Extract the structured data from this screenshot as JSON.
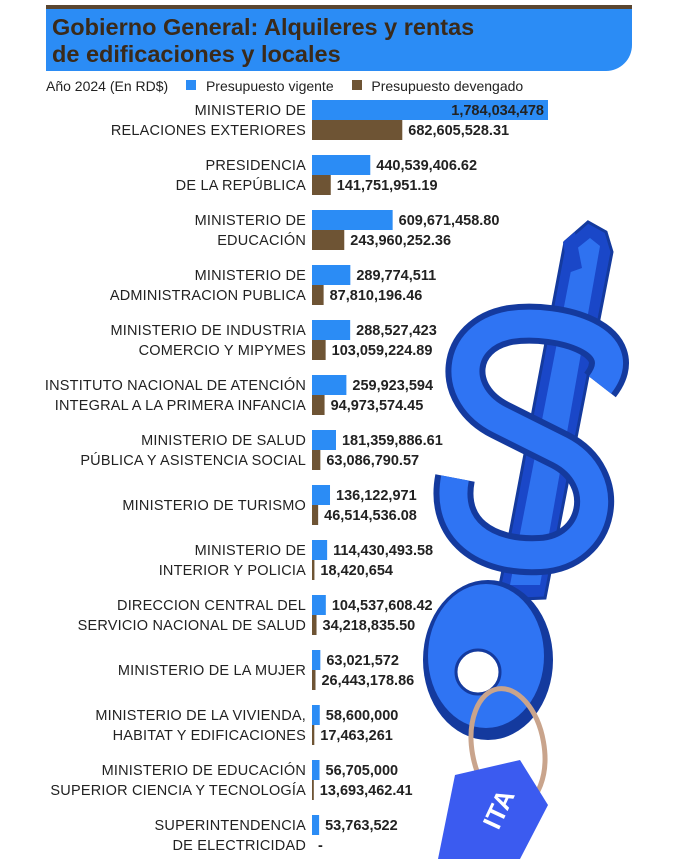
{
  "header": {
    "title_line1": "Gobierno General: Alquileres y rentas",
    "title_line2": "de edificaciones y locales"
  },
  "subtitle": "Año 2024 (En RD$)",
  "colors": {
    "vigente": "#2b8cf5",
    "devengado": "#6e5434",
    "header_bg": "#2b8cf5",
    "key": "#1f5fe0",
    "tag": "#3b5bf0"
  },
  "decoration": {
    "icon": "key-dollar-icon",
    "tag_text": "ITA"
  },
  "chart_data": {
    "type": "bar",
    "orientation": "horizontal",
    "grid": false,
    "legend_position": "top",
    "categories": [
      [
        "MINISTERIO DE",
        "RELACIONES EXTERIORES"
      ],
      [
        "PRESIDENCIA",
        "DE LA REPÚBLICA"
      ],
      [
        "MINISTERIO DE",
        "EDUCACIÓN"
      ],
      [
        "MINISTERIO DE",
        "ADMINISTRACION PUBLICA"
      ],
      [
        "MINISTERIO DE INDUSTRIA",
        "COMERCIO Y MIPYMES"
      ],
      [
        "INSTITUTO NACIONAL DE ATENCIÓN",
        "INTEGRAL A LA PRIMERA INFANCIA"
      ],
      [
        "MINISTERIO DE SALUD",
        "PÚBLICA Y ASISTENCIA SOCIAL"
      ],
      [
        "MINISTERIO DE TURISMO"
      ],
      [
        "MINISTERIO DE",
        "INTERIOR Y POLICIA"
      ],
      [
        "DIRECCION CENTRAL DEL",
        "SERVICIO NACIONAL DE SALUD"
      ],
      [
        "MINISTERIO DE LA MUJER"
      ],
      [
        "MINISTERIO DE LA VIVIENDA,",
        "HABITAT Y EDIFICACIONES"
      ],
      [
        "MINISTERIO DE EDUCACIÓN",
        "SUPERIOR CIENCIA Y TECNOLOGÍA"
      ],
      [
        "SUPERINTENDENCIA",
        "DE ELECTRICIDAD"
      ]
    ],
    "series": [
      {
        "name": "Presupuesto vigente",
        "values": [
          1784034478,
          440539406.62,
          609671458.8,
          289774511,
          288527423,
          259923594,
          181359886.61,
          136122971,
          114430493.58,
          104537608.42,
          63021572,
          58600000,
          56705000,
          53763522
        ],
        "labels": [
          "1,784,034,478",
          "440,539,406.62",
          "609,671,458.80",
          "289,774,511",
          "288,527,423",
          "259,923,594",
          "181,359,886.61",
          "136,122,971",
          "114,430,493.58",
          "104,537,608.42",
          "63,021,572",
          "58,600,000",
          "56,705,000",
          "53,763,522"
        ]
      },
      {
        "name": "Presupuesto devengado",
        "values": [
          682605528.31,
          141751951.19,
          243960252.36,
          87810196.46,
          103059224.89,
          94973574.45,
          63086790.57,
          46514536.08,
          18420654,
          34218835.5,
          26443178.86,
          17463261,
          13693462.41,
          0
        ],
        "labels": [
          "682,605,528.31",
          "141,751,951.19",
          "243,960,252.36",
          "87,810,196.46",
          "103,059,224.89",
          "94,973,574.45",
          "63,086,790.57",
          "46,514,536.08",
          "18,420,654",
          "34,218,835.50",
          "26,443,178.86",
          "17,463,261",
          "13,693,462.41",
          "-"
        ]
      }
    ]
  }
}
